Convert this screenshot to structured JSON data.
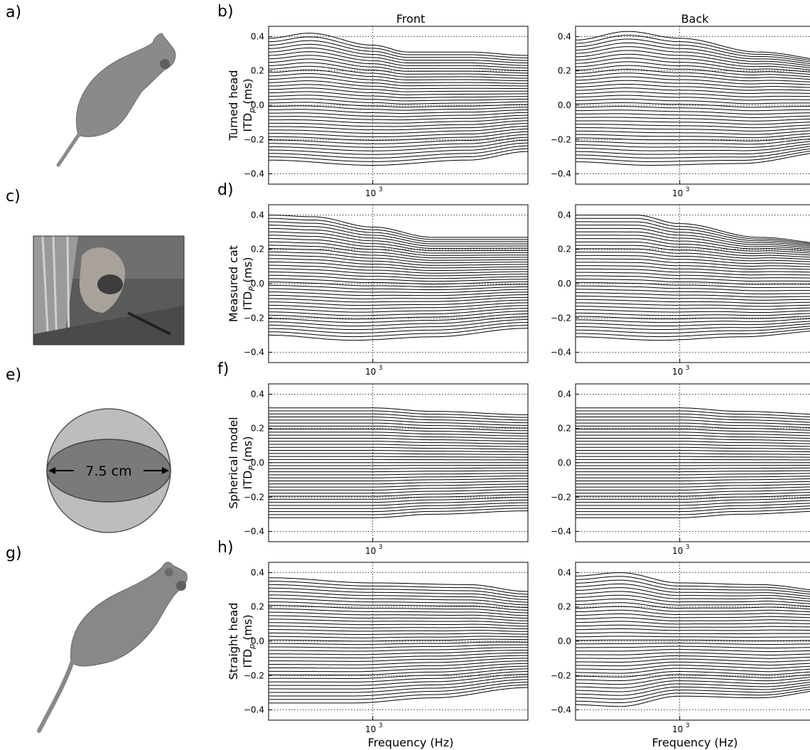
{
  "figure": {
    "columns": [
      "Front",
      "Back"
    ],
    "left_panels": [
      {
        "letter": "a)",
        "kind": "cat-model-turned"
      },
      {
        "letter": "c)",
        "kind": "cat-photo"
      },
      {
        "letter": "e)",
        "kind": "sphere",
        "dimension_label": "7.5 cm"
      },
      {
        "letter": "g)",
        "kind": "cat-model-straight"
      }
    ],
    "rows": [
      {
        "letter": "b)",
        "ylabel_line1": "Turned head",
        "ylabel_line2": "ITD",
        "ylabel_sub": "p",
        "ylabel_unit": " (ms)"
      },
      {
        "letter": "d)",
        "ylabel_line1": "Measured cat",
        "ylabel_line2": "ITD",
        "ylabel_sub": "P",
        "ylabel_unit": " (ms)"
      },
      {
        "letter": "f)",
        "ylabel_line1": "Spherical model",
        "ylabel_line2": "ITD",
        "ylabel_sub": "P",
        "ylabel_unit": " (ms)"
      },
      {
        "letter": "h)",
        "ylabel_line1": "Straight head",
        "ylabel_line2": "ITD",
        "ylabel_sub": "p",
        "ylabel_unit": " (ms)"
      }
    ],
    "xlabel": "Frequency (Hz)",
    "x_tick_label": "10",
    "x_tick_exp": "3",
    "y_ticks": [
      "0.4",
      "0.2",
      "0.0",
      "−0.2",
      "−0.4"
    ]
  },
  "colors": {
    "line": "#000000",
    "grid": "#000000",
    "sphere_outer": "#bdbdbd",
    "sphere_inner": "#7a7a7a",
    "cat_body": "#8c8c8c"
  },
  "chart_data": [
    {
      "panel": "b",
      "column": "Front",
      "type": "line",
      "xscale": "log",
      "xlim": [
        300,
        6000
      ],
      "ylim": [
        -0.46,
        0.46
      ],
      "grid": true,
      "n_lines": 37,
      "y_top": 0.385,
      "y_bottom": -0.325,
      "top_line": [
        [
          300,
          0.39
        ],
        [
          480,
          0.42
        ],
        [
          1000,
          0.35
        ],
        [
          1500,
          0.31
        ],
        [
          3000,
          0.31
        ],
        [
          6000,
          0.29
        ]
      ],
      "bottom_line": [
        [
          300,
          -0.32
        ],
        [
          1000,
          -0.35
        ],
        [
          3000,
          -0.32
        ],
        [
          6000,
          -0.27
        ]
      ]
    },
    {
      "panel": "b",
      "column": "Back",
      "type": "line",
      "xscale": "log",
      "xlim": [
        300,
        6000
      ],
      "ylim": [
        -0.46,
        0.46
      ],
      "grid": true,
      "n_lines": 37,
      "y_top": 0.385,
      "y_bottom": -0.325,
      "top_line": [
        [
          300,
          0.38
        ],
        [
          550,
          0.43
        ],
        [
          1000,
          0.39
        ],
        [
          2500,
          0.31
        ],
        [
          6000,
          0.26
        ]
      ],
      "bottom_line": [
        [
          300,
          -0.33
        ],
        [
          700,
          -0.35
        ],
        [
          2000,
          -0.34
        ],
        [
          6000,
          -0.27
        ]
      ]
    },
    {
      "panel": "d",
      "column": "Front",
      "type": "line",
      "xscale": "log",
      "xlim": [
        300,
        6000
      ],
      "ylim": [
        -0.46,
        0.46
      ],
      "grid": true,
      "n_lines": 37,
      "y_top": 0.4,
      "y_bottom": -0.305,
      "top_line": [
        [
          300,
          0.4
        ],
        [
          500,
          0.39
        ],
        [
          1000,
          0.33
        ],
        [
          2000,
          0.27
        ],
        [
          6000,
          0.27
        ]
      ],
      "bottom_line": [
        [
          300,
          -0.3
        ],
        [
          800,
          -0.33
        ],
        [
          2000,
          -0.31
        ],
        [
          6000,
          -0.26
        ]
      ]
    },
    {
      "panel": "d",
      "column": "Back",
      "type": "line",
      "xscale": "log",
      "xlim": [
        300,
        6000
      ],
      "ylim": [
        -0.46,
        0.46
      ],
      "grid": true,
      "n_lines": 37,
      "y_top": 0.4,
      "y_bottom": -0.305,
      "top_line": [
        [
          300,
          0.4
        ],
        [
          600,
          0.4
        ],
        [
          1000,
          0.35
        ],
        [
          2500,
          0.27
        ],
        [
          6000,
          0.23
        ]
      ],
      "bottom_line": [
        [
          300,
          -0.31
        ],
        [
          800,
          -0.33
        ],
        [
          2000,
          -0.31
        ],
        [
          6000,
          -0.27
        ]
      ]
    },
    {
      "panel": "f",
      "column": "Front",
      "type": "line",
      "xscale": "log",
      "xlim": [
        300,
        6000
      ],
      "ylim": [
        -0.46,
        0.46
      ],
      "grid": true,
      "n_lines": 37,
      "y_top": 0.32,
      "y_bottom": -0.315,
      "top_line": [
        [
          300,
          0.32
        ],
        [
          1000,
          0.32
        ],
        [
          2000,
          0.3
        ],
        [
          6000,
          0.28
        ]
      ],
      "bottom_line": [
        [
          300,
          -0.32
        ],
        [
          1000,
          -0.32
        ],
        [
          2000,
          -0.3
        ],
        [
          6000,
          -0.28
        ]
      ]
    },
    {
      "panel": "f",
      "column": "Back",
      "type": "line",
      "xscale": "log",
      "xlim": [
        300,
        6000
      ],
      "ylim": [
        -0.46,
        0.46
      ],
      "grid": true,
      "n_lines": 37,
      "y_top": 0.32,
      "y_bottom": -0.315,
      "top_line": [
        [
          300,
          0.32
        ],
        [
          1000,
          0.32
        ],
        [
          2000,
          0.3
        ],
        [
          6000,
          0.28
        ]
      ],
      "bottom_line": [
        [
          300,
          -0.32
        ],
        [
          1000,
          -0.32
        ],
        [
          2000,
          -0.3
        ],
        [
          6000,
          -0.28
        ]
      ]
    },
    {
      "panel": "h",
      "column": "Front",
      "type": "line",
      "xscale": "log",
      "xlim": [
        300,
        6000
      ],
      "ylim": [
        -0.46,
        0.46
      ],
      "grid": true,
      "n_lines": 37,
      "y_top": 0.37,
      "y_bottom": -0.35,
      "top_line": [
        [
          300,
          0.37
        ],
        [
          1000,
          0.34
        ],
        [
          3000,
          0.33
        ],
        [
          6000,
          0.29
        ]
      ],
      "bottom_line": [
        [
          300,
          -0.36
        ],
        [
          800,
          -0.36
        ],
        [
          2000,
          -0.33
        ],
        [
          6000,
          -0.27
        ]
      ]
    },
    {
      "panel": "h",
      "column": "Back",
      "type": "line",
      "xscale": "log",
      "xlim": [
        300,
        6000
      ],
      "ylim": [
        -0.46,
        0.46
      ],
      "grid": true,
      "n_lines": 37,
      "y_top": 0.38,
      "y_bottom": -0.37,
      "top_line": [
        [
          300,
          0.38
        ],
        [
          500,
          0.4
        ],
        [
          1000,
          0.34
        ],
        [
          2500,
          0.33
        ],
        [
          6000,
          0.29
        ]
      ],
      "bottom_line": [
        [
          300,
          -0.37
        ],
        [
          500,
          -0.38
        ],
        [
          1000,
          -0.32
        ],
        [
          2500,
          -0.33
        ],
        [
          6000,
          -0.28
        ]
      ]
    }
  ]
}
